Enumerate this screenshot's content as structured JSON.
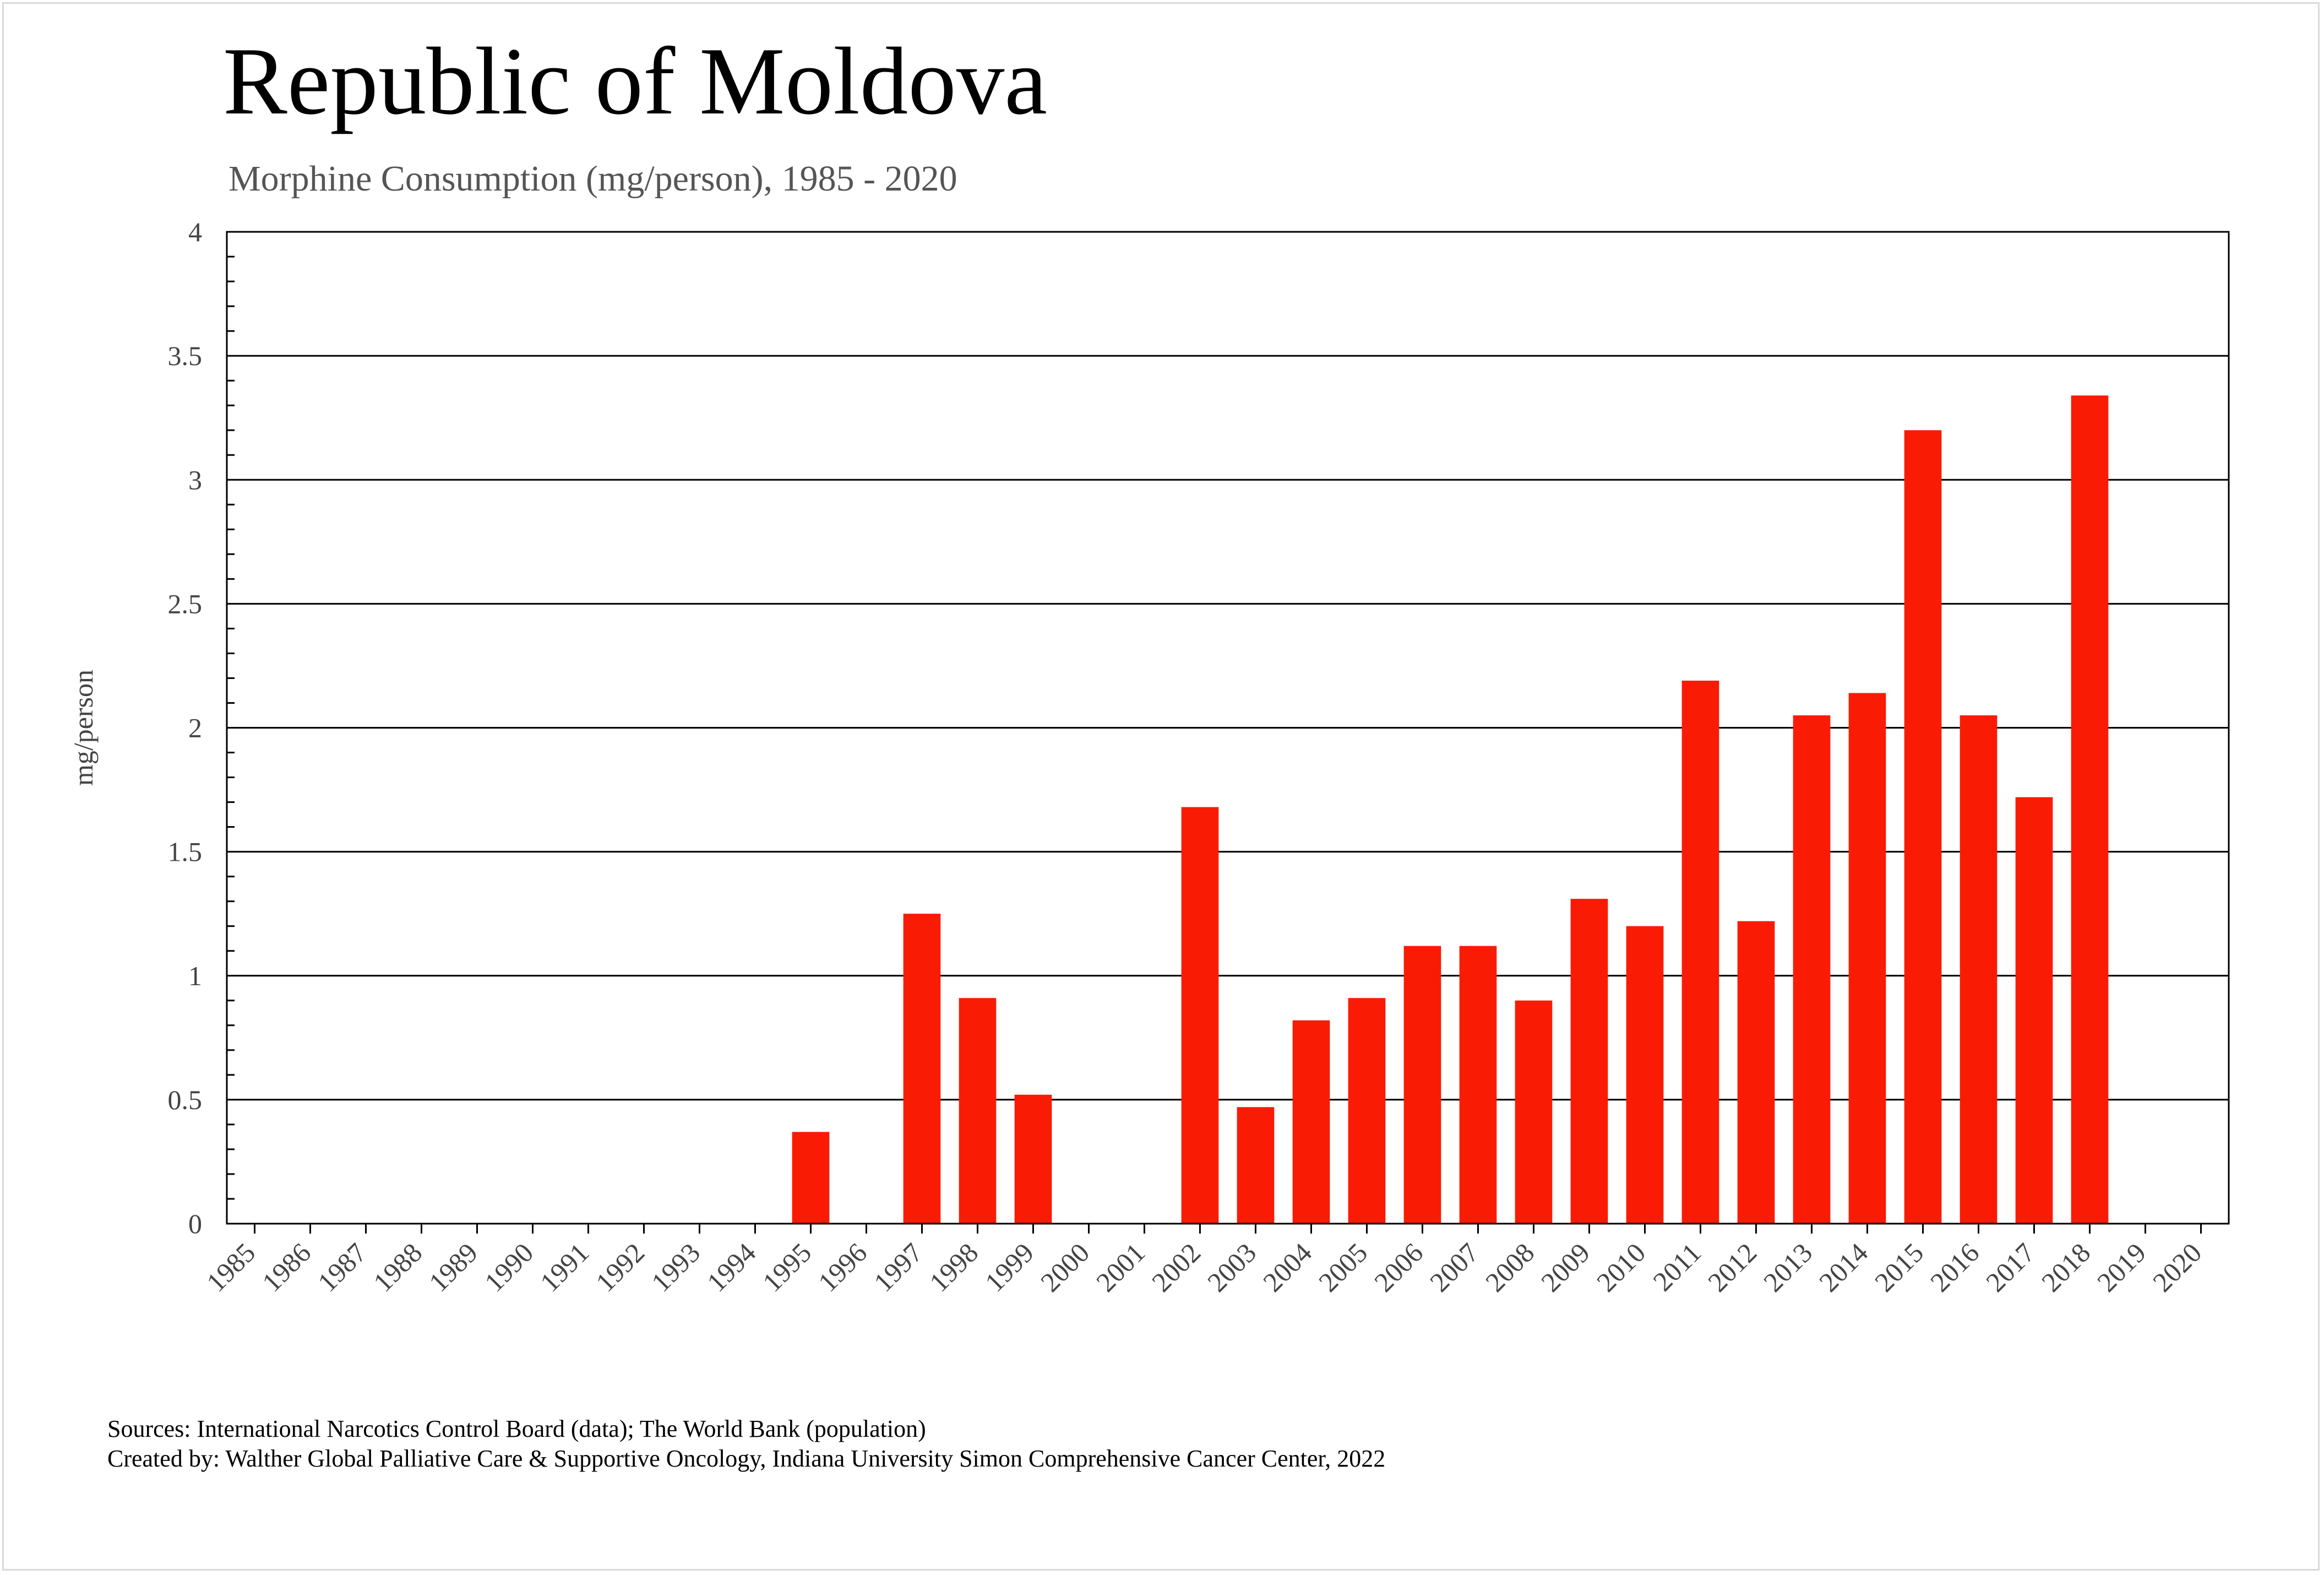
{
  "header": {
    "title": "Republic of Moldova",
    "subtitle": "Morphine Consumption (mg/person), 1985 - 2020"
  },
  "footer": {
    "sources": "Sources: International Narcotics Control Board (data); The World Bank (population)",
    "created_by": "Created by: Walther  Global Palliative Care & Supportive Oncology, Indiana University Simon Comprehensive Cancer Center, 2022"
  },
  "colors": {
    "bar": "#fa1b05",
    "grid": "#000000",
    "tick_text": "#444444"
  },
  "chart_data": {
    "type": "bar",
    "title": "Republic of Moldova",
    "subtitle": "Morphine Consumption (mg/person), 1985 - 2020",
    "xlabel": "",
    "ylabel": "mg/person",
    "ylim": [
      0,
      4
    ],
    "yticks": [
      "0",
      "0.5",
      "1",
      "1.5",
      "2",
      "2.5",
      "3",
      "3.5",
      "4"
    ],
    "categories": [
      "1985",
      "1986",
      "1987",
      "1988",
      "1989",
      "1990",
      "1991",
      "1992",
      "1993",
      "1994",
      "1995",
      "1996",
      "1997",
      "1998",
      "1999",
      "2000",
      "2001",
      "2002",
      "2003",
      "2004",
      "2005",
      "2006",
      "2007",
      "2008",
      "2009",
      "2010",
      "2011",
      "2012",
      "2013",
      "2014",
      "2015",
      "2016",
      "2017",
      "2018",
      "2019",
      "2020"
    ],
    "values": [
      0,
      0,
      0,
      0,
      0,
      0,
      0,
      0,
      0,
      0,
      0.37,
      0,
      1.25,
      0.91,
      0.52,
      0,
      0,
      1.68,
      0.47,
      0.82,
      0.91,
      1.12,
      1.12,
      0.9,
      1.31,
      1.2,
      2.19,
      1.22,
      2.05,
      2.14,
      3.2,
      2.05,
      1.72,
      3.34,
      0,
      0
    ],
    "grid": true,
    "legend": "none"
  }
}
